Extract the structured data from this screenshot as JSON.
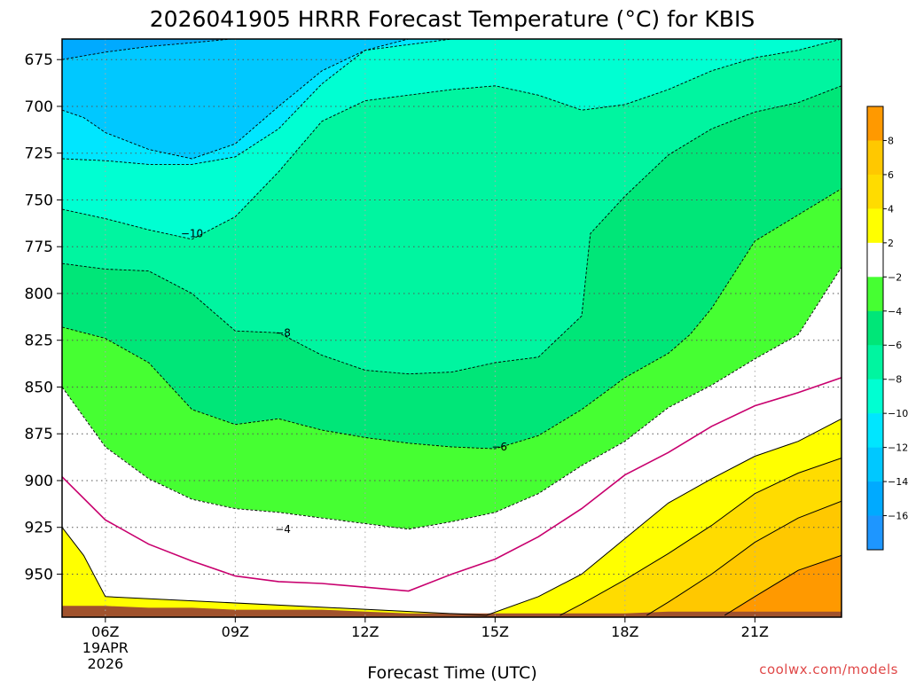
{
  "chart_data": {
    "type": "heatmap",
    "title": "2026041905 HRRR Forecast Temperature (°C) for KBIS",
    "xlabel": "Forecast Time (UTC)",
    "ylabel": "",
    "x_ticks": [
      "06Z",
      "09Z",
      "12Z",
      "15Z",
      "18Z",
      "21Z"
    ],
    "x_tick_sublabel": [
      "19APR",
      "2026"
    ],
    "x_hours": [
      5,
      6,
      7,
      8,
      9,
      10,
      11,
      12,
      13,
      14,
      15,
      16,
      17,
      18,
      19,
      20,
      21,
      22,
      23
    ],
    "xlim": [
      5,
      23
    ],
    "y_ticks": [
      675,
      700,
      725,
      750,
      775,
      800,
      825,
      850,
      875,
      900,
      925,
      950
    ],
    "ylim": [
      664,
      973
    ],
    "contour_interval": 2,
    "contour_labels": [
      {
        "text": "−10",
        "x": 8.0,
        "y": 768
      },
      {
        "text": "−8",
        "x": 10.1,
        "y": 821
      },
      {
        "text": "−6",
        "x": 15.1,
        "y": 882
      },
      {
        "text": "−4",
        "x": 10.1,
        "y": 926
      }
    ],
    "levels": [
      {
        "level": -14,
        "x": [
          5,
          6,
          7,
          8,
          8.9
        ],
        "y": [
          675,
          671,
          668,
          666,
          664
        ]
      },
      {
        "level": -12,
        "x": [
          5,
          5.5,
          6,
          7,
          8,
          9,
          10,
          11,
          12,
          13,
          14,
          15,
          16,
          17,
          17.5,
          18
        ],
        "y": [
          702,
          706,
          714,
          723,
          728,
          720,
          700,
          681,
          670,
          664,
          664,
          664,
          664,
          664,
          664,
          664
        ]
      },
      {
        "level": -10,
        "x": [
          5,
          6,
          7,
          8,
          9,
          10,
          11,
          12,
          13,
          14,
          15,
          16,
          17,
          18,
          19,
          20,
          21,
          22,
          23
        ],
        "y": [
          728,
          729,
          731,
          731,
          727,
          712,
          688,
          670,
          667,
          664,
          664,
          664,
          664,
          664,
          664,
          664,
          664,
          664,
          664
        ]
      },
      {
        "level": -8,
        "x": [
          5,
          6,
          7,
          8,
          9,
          10,
          11,
          12,
          13,
          14,
          15,
          16,
          17,
          18,
          19,
          20,
          21,
          22,
          23
        ],
        "y": [
          755,
          760,
          766,
          771,
          759,
          735,
          708,
          697,
          694,
          691,
          689,
          694,
          702,
          699,
          691,
          681,
          674,
          670,
          664
        ]
      },
      {
        "level": -6,
        "x": [
          5,
          6,
          7,
          8,
          9,
          10,
          11,
          12,
          13,
          14,
          15,
          16,
          17,
          17.2,
          18,
          19,
          20,
          21,
          22,
          23
        ],
        "y": [
          784,
          787,
          788,
          800,
          820,
          821,
          833,
          841,
          843,
          842,
          837,
          834,
          812,
          768,
          748,
          726,
          712,
          703,
          698,
          689
        ]
      },
      {
        "level": -4,
        "x": [
          5,
          6,
          7,
          8,
          9,
          10,
          11,
          12,
          13,
          14,
          15,
          16,
          17,
          18,
          19,
          19.5,
          20,
          21,
          22,
          23
        ],
        "y": [
          818,
          824,
          837,
          862,
          870,
          867,
          873,
          877,
          880,
          882,
          883,
          876,
          862,
          845,
          832,
          822,
          808,
          772,
          758,
          744
        ]
      },
      {
        "level": -2,
        "x": [
          5,
          6,
          7,
          8,
          9,
          10,
          11,
          12,
          13,
          14,
          15,
          16,
          17,
          18,
          19,
          20,
          21,
          22,
          23
        ],
        "y": [
          850,
          882,
          899,
          910,
          915,
          917,
          920,
          923,
          926,
          922,
          917,
          907,
          892,
          879,
          861,
          849,
          835,
          822,
          786
        ]
      },
      {
        "level": 0,
        "x": [
          5,
          6,
          7,
          8,
          9,
          10,
          11,
          12,
          13,
          14,
          15,
          16,
          17,
          18,
          19,
          20,
          21,
          22,
          23
        ],
        "y": [
          898,
          921,
          934,
          943,
          951,
          954,
          955,
          957,
          959,
          950,
          942,
          930,
          915,
          897,
          885,
          871,
          860,
          853,
          845
        ]
      },
      {
        "level": 2,
        "x": [
          5,
          5.5,
          6,
          14.8,
          16,
          17,
          18,
          19,
          20,
          21,
          22,
          23
        ],
        "y": [
          925,
          940,
          962,
          972,
          962,
          950,
          931,
          912,
          899,
          887,
          879,
          867
        ]
      },
      {
        "level": 4,
        "x": [
          16.5,
          17,
          18,
          19,
          20,
          21,
          22,
          23
        ],
        "y": [
          972,
          966,
          953,
          939,
          924,
          907,
          896,
          888
        ]
      },
      {
        "level": 6,
        "x": [
          18.5,
          19,
          20,
          21,
          22,
          23
        ],
        "y": [
          972,
          965,
          950,
          933,
          920,
          911
        ]
      },
      {
        "level": 8,
        "x": [
          20.3,
          21,
          22,
          23
        ],
        "y": [
          972,
          962,
          948,
          940
        ]
      }
    ],
    "colorbar": {
      "labels": [
        "8",
        "6",
        "4",
        "2",
        "−2",
        "−4",
        "−6",
        "−8",
        "−10",
        "−12",
        "−14",
        "−16"
      ],
      "bands": [
        {
          "range": [
            -18,
            -16
          ],
          "color": "#1e96ff"
        },
        {
          "range": [
            -16,
            -14
          ],
          "color": "#00aaff"
        },
        {
          "range": [
            -14,
            -12
          ],
          "color": "#00c8ff"
        },
        {
          "range": [
            -12,
            -10
          ],
          "color": "#00e6ff"
        },
        {
          "range": [
            -10,
            -8
          ],
          "color": "#00ffd2"
        },
        {
          "range": [
            -8,
            -6
          ],
          "color": "#00f5a0"
        },
        {
          "range": [
            -6,
            -4
          ],
          "color": "#00e678"
        },
        {
          "range": [
            -4,
            -2
          ],
          "color": "#46ff32"
        },
        {
          "range": [
            -2,
            2
          ],
          "color": "#ffffff"
        },
        {
          "range": [
            2,
            4
          ],
          "color": "#ffff00"
        },
        {
          "range": [
            4,
            6
          ],
          "color": "#ffdc00"
        },
        {
          "range": [
            6,
            8
          ],
          "color": "#ffc800"
        },
        {
          "range": [
            8,
            10
          ],
          "color": "#ff9900"
        }
      ]
    },
    "terrain_color": "#a0522d",
    "terrain": {
      "x": [
        5,
        6,
        7,
        8,
        9,
        10,
        11,
        12,
        13,
        14,
        15,
        16,
        17,
        18,
        19,
        20,
        21,
        22,
        23
      ],
      "y": [
        967,
        967,
        968,
        968,
        969,
        969,
        969,
        970,
        971,
        971,
        971,
        971,
        971,
        971,
        970,
        970,
        970,
        970,
        970
      ]
    }
  },
  "credit": "coolwx.com/models"
}
